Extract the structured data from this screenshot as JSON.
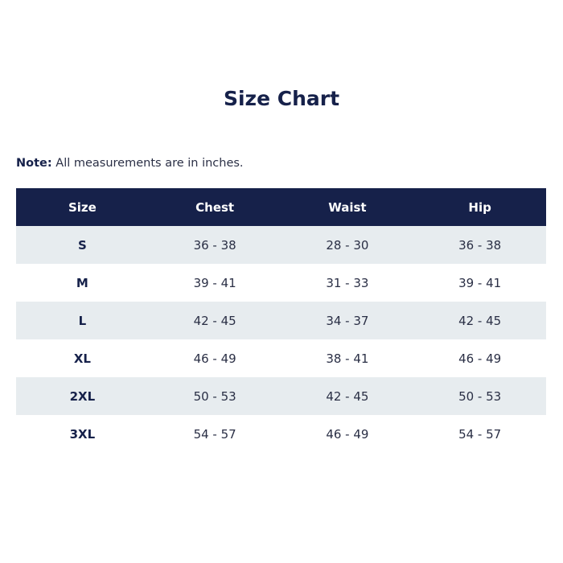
{
  "title": "Size Chart",
  "note": {
    "label": "Note:",
    "text": " All measurements are in inches."
  },
  "table": {
    "headers": [
      "Size",
      "Chest",
      "Waist",
      "Hip"
    ],
    "rows": [
      [
        "S",
        "36 - 38",
        "28 - 30",
        "36 - 38"
      ],
      [
        "M",
        "39 - 41",
        "31 - 33",
        "39 - 41"
      ],
      [
        "L",
        "42 - 45",
        "34 - 37",
        "42 - 45"
      ],
      [
        "XL",
        "46 - 49",
        "38 - 41",
        "46 - 49"
      ],
      [
        "2XL",
        "50 - 53",
        "42 - 45",
        "50 - 53"
      ],
      [
        "3XL",
        "54 - 57",
        "46 - 49",
        "54 - 57"
      ]
    ]
  },
  "colors": {
    "header_bg": "#16214a",
    "stripe_bg": "#e7ecef",
    "text": "#16214a"
  }
}
